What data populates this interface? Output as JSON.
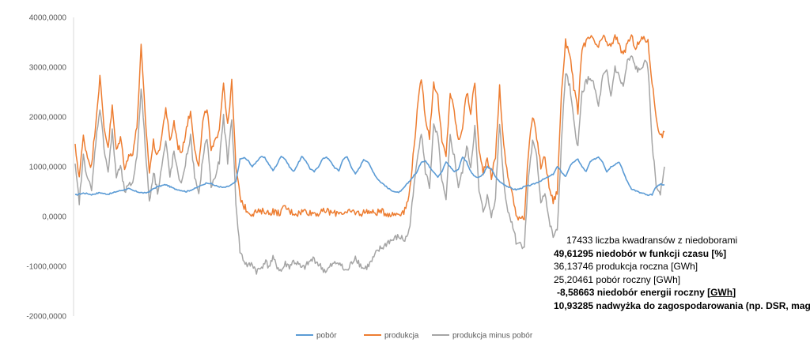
{
  "chart_data": {
    "type": "line",
    "title": "",
    "xlabel": "",
    "ylabel": "",
    "ylim": [
      -2000,
      4000
    ],
    "y_ticks": [
      "4000,0000",
      "3000,0000",
      "2000,0000",
      "1000,0000",
      "0,0000",
      "-1000,0000",
      "-2000,0000"
    ],
    "y_tick_values": [
      4000,
      3000,
      2000,
      1000,
      0,
      -1000,
      -2000
    ],
    "grid": false,
    "legend_position": "bottom",
    "series": [
      {
        "name": "pobór",
        "color": "#5B9BD5",
        "values": [
          430,
          450,
          470,
          460,
          440,
          460,
          480,
          460,
          450,
          470,
          500,
          520,
          540,
          560,
          520,
          500,
          480,
          470,
          500,
          560,
          600,
          620,
          640,
          600,
          560,
          540,
          520,
          500,
          530,
          560,
          600,
          640,
          680,
          660,
          620,
          600,
          580,
          600,
          640,
          700,
          1150,
          1180,
          1120,
          1000,
          1100,
          1200,
          1180,
          1050,
          920,
          1050,
          1220,
          1150,
          1000,
          900,
          1050,
          1200,
          1120,
          960,
          900,
          1000,
          1150,
          1200,
          1100,
          980,
          920,
          1150,
          1200,
          1000,
          850,
          980,
          1150,
          1100,
          950,
          800,
          700,
          640,
          560,
          520,
          480,
          500,
          600,
          700,
          800,
          900,
          1100,
          1120,
          1000,
          900,
          800,
          900,
          1100,
          1000,
          900,
          950,
          1200,
          1100,
          900,
          800,
          780,
          850,
          1000,
          950,
          800,
          700,
          650,
          600,
          560,
          540,
          560,
          600,
          620,
          640,
          680,
          720,
          760,
          800,
          850,
          1000,
          900,
          800,
          1000,
          1100,
          1150,
          1000,
          900,
          1100,
          1150,
          1200,
          1100,
          900,
          1000,
          1050,
          1100,
          900,
          700,
          560,
          520,
          480,
          460,
          420,
          440,
          600,
          650,
          640
        ],
        "values_note": ""
      },
      {
        "name": "produkcja",
        "color": "#ED7D31",
        "values": [
          1400,
          800,
          1600,
          1200,
          1000,
          1900,
          2800,
          1800,
          1400,
          2200,
          1300,
          1600,
          1000,
          1200,
          1300,
          1800,
          3400,
          2000,
          900,
          1500,
          1200,
          1600,
          2200,
          1500,
          1900,
          1400,
          1300,
          1800,
          2100,
          1400,
          1000,
          1900,
          2200,
          1300,
          1500,
          1800,
          2700,
          1800,
          2700,
          1000,
          400,
          200,
          100,
          60,
          100,
          80,
          120,
          60,
          120,
          60,
          100,
          200,
          100,
          80,
          60,
          100,
          120,
          70,
          80,
          60,
          90,
          120,
          80,
          60,
          100,
          80,
          60,
          100,
          90,
          60,
          80,
          120,
          70,
          80,
          100,
          80,
          60,
          40,
          60,
          80,
          120,
          400,
          1200,
          2100,
          2800,
          2000,
          1600,
          2700,
          2400,
          1500,
          1200,
          2500,
          2100,
          1500,
          1800,
          2500,
          2100,
          2700,
          1300,
          900,
          1200,
          800,
          1200,
          2600,
          1400,
          800,
          500,
          0,
          0,
          0,
          1300,
          2000,
          1600,
          1000,
          1200,
          600,
          300,
          500,
          2500,
          3500,
          3300,
          2600,
          2100,
          3400,
          3500,
          3600,
          3500,
          3400,
          3600,
          3500,
          3400,
          3600,
          3500,
          3200,
          3500,
          3600,
          3400,
          3500,
          3600,
          3500,
          2700,
          2000,
          1600,
          1700
        ]
      },
      {
        "name": "produkcja minus pobór",
        "color": "#A5A5A5",
        "values": [
          1000,
          300,
          1200,
          800,
          500,
          1500,
          2200,
          1400,
          900,
          1700,
          800,
          1000,
          500,
          600,
          700,
          1200,
          2600,
          1400,
          300,
          900,
          500,
          1000,
          1500,
          800,
          1300,
          800,
          700,
          1200,
          1600,
          800,
          400,
          1200,
          1600,
          600,
          800,
          1100,
          2000,
          1100,
          2000,
          300,
          -700,
          -900,
          -1000,
          -950,
          -1100,
          -1050,
          -900,
          -1000,
          -850,
          -1000,
          -1100,
          -950,
          -1000,
          -900,
          -950,
          -1050,
          -1000,
          -900,
          -850,
          -950,
          -1050,
          -1100,
          -1000,
          -950,
          -900,
          -1050,
          -1100,
          -950,
          -800,
          -950,
          -1050,
          -1000,
          -900,
          -750,
          -650,
          -600,
          -500,
          -480,
          -420,
          -420,
          -480,
          -300,
          400,
          1200,
          1700,
          900,
          600,
          1800,
          1600,
          700,
          300,
          1600,
          1200,
          600,
          900,
          1400,
          1000,
          1800,
          500,
          100,
          400,
          0,
          400,
          1900,
          700,
          100,
          -100,
          -500,
          -550,
          -600,
          800,
          1500,
          1200,
          300,
          500,
          -100,
          -400,
          -300,
          1500,
          2900,
          2600,
          1900,
          1400,
          2500,
          2700,
          2800,
          2600,
          2200,
          2800,
          2900,
          2400,
          3000,
          2800,
          2600,
          3100,
          3200,
          3000,
          2900,
          3100,
          3000,
          1500,
          600,
          500,
          1000
        ]
      }
    ],
    "legend": [
      "pobór",
      "produkcja",
      "produkcja minus pobór"
    ]
  },
  "stats": {
    "line1_value": "17433",
    "line1_label": "liczba kwadransów z niedoborami",
    "line2_value": "49,61295",
    "line2_label": "niedobór w funkcji czasu [%]",
    "line3_value": "36,13746",
    "line3_label": "produkcja roczna [GWh]",
    "line4_value": "25,20461",
    "line4_label": "pobór roczny [GWh]",
    "line5_value": "-8,58663",
    "line5_label_a": "niedobór energii roczny [",
    "line5_label_u": "GWh",
    "line5_label_b": "]",
    "line6_value": "10,93285",
    "line6_label": "nadwyżka do zagospodarowania (np. DSR, magazyn)"
  }
}
